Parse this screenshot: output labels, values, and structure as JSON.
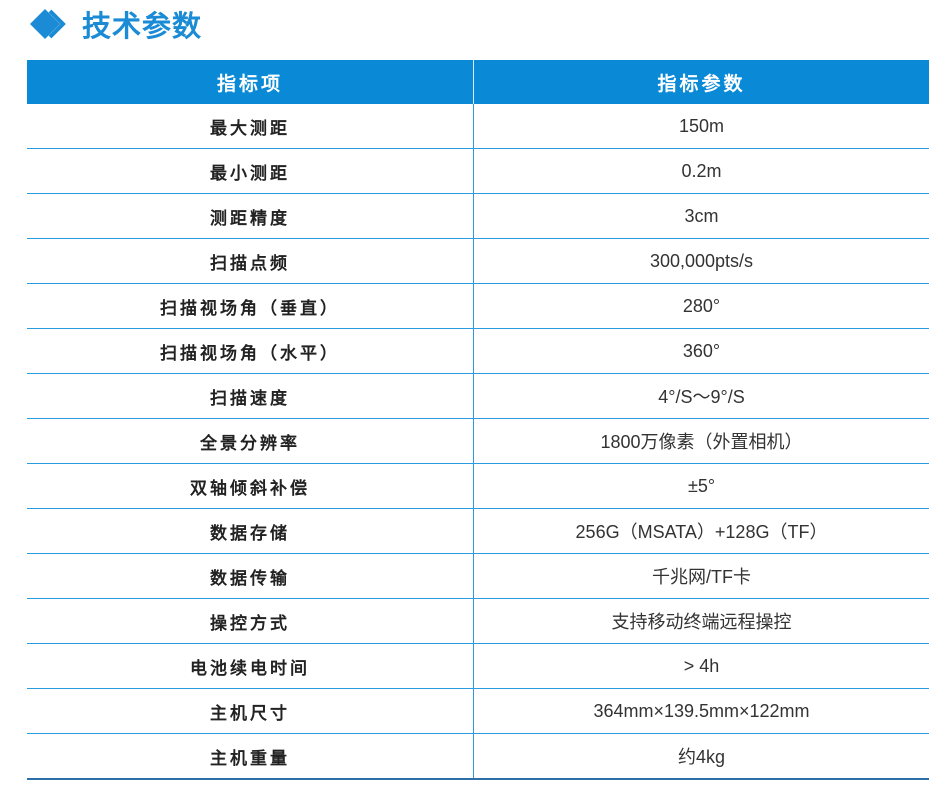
{
  "title": "技术参数",
  "colors": {
    "accent": "#0a8ad6",
    "row_line": "#2a9be0",
    "bottom_line": "#2f6fa8"
  },
  "table": {
    "headers": [
      "指标项",
      "指标参数"
    ],
    "rows": [
      [
        "最大测距",
        "150m"
      ],
      [
        "最小测距",
        "0.2m"
      ],
      [
        "测距精度",
        "3cm"
      ],
      [
        "扫描点频",
        "300,000pts/s"
      ],
      [
        "扫描视场角（垂直）",
        "280°"
      ],
      [
        "扫描视场角（水平）",
        "360°"
      ],
      [
        "扫描速度",
        "4°/S～9°/S"
      ],
      [
        "全景分辨率",
        "1800万像素（外置相机）"
      ],
      [
        "双轴倾斜补偿",
        "±5°"
      ],
      [
        "数据存储",
        "256G（MSATA）+128G（TF）"
      ],
      [
        "数据传输",
        "千兆网/TF卡"
      ],
      [
        "操控方式",
        "支持移动终端远程操控"
      ],
      [
        "电池续电时间",
        "> 4h"
      ],
      [
        "主机尺寸",
        "364mm×139.5mm×122mm"
      ],
      [
        "主机重量",
        "约4kg"
      ]
    ]
  }
}
